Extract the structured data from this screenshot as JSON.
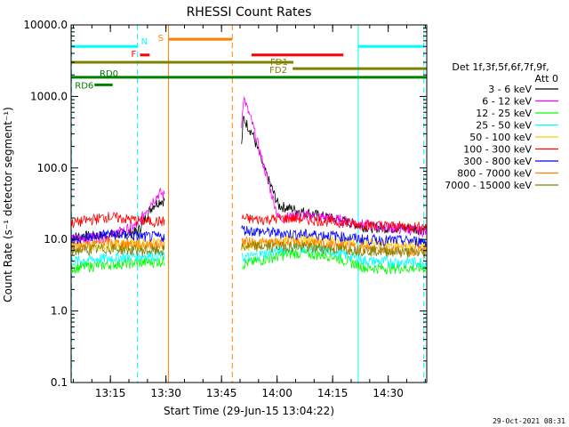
{
  "chart_data": {
    "type": "line",
    "title": "RHESSI Count Rates",
    "xlabel": "Start Time (29-Jun-15 13:04:22)",
    "ylabel": "Count Rate (s⁻¹ detector segment⁻¹)",
    "yscale": "log",
    "ylim": [
      0.1,
      10000
    ],
    "xlim_minutes": [
      0,
      96
    ],
    "y_ticks": [
      "0.1",
      "1.0",
      "10.0",
      "100.0",
      "1000.0",
      "10000.0"
    ],
    "x_ticks": [
      {
        "label": "13:15",
        "t": 10.6
      },
      {
        "label": "13:30",
        "t": 25.6
      },
      {
        "label": "13:45",
        "t": 40.6
      },
      {
        "label": "14:00",
        "t": 55.6
      },
      {
        "label": "14:15",
        "t": 70.6
      },
      {
        "label": "14:30",
        "t": 85.6
      }
    ],
    "legend": {
      "header1": "Det 1f,3f,5f,6f,7f,9f,",
      "header2": "Att 0",
      "placement": "right"
    },
    "series": [
      {
        "name": "3 - 6 keV",
        "color": "#000000",
        "points": [
          [
            0,
            11
          ],
          [
            10,
            11.5
          ],
          [
            18,
            13
          ],
          [
            20,
            20
          ],
          [
            22,
            30
          ],
          [
            24,
            35
          ],
          [
            25,
            35
          ],
          [
            46,
            200
          ],
          [
            46.5,
            500
          ],
          [
            49,
            300
          ],
          [
            52,
            100
          ],
          [
            56,
            30
          ],
          [
            62,
            25
          ],
          [
            70,
            20
          ],
          [
            80,
            15
          ],
          [
            96,
            14
          ]
        ]
      },
      {
        "name": "6 - 12 keV",
        "color": "#ff00ff",
        "points": [
          [
            0,
            10
          ],
          [
            10,
            11
          ],
          [
            18,
            16
          ],
          [
            20,
            25
          ],
          [
            22,
            35
          ],
          [
            24,
            45
          ],
          [
            25,
            42
          ],
          [
            46,
            400
          ],
          [
            46.5,
            1000
          ],
          [
            49,
            400
          ],
          [
            53,
            70
          ],
          [
            56,
            20
          ],
          [
            62,
            22
          ],
          [
            70,
            20
          ],
          [
            80,
            16
          ],
          [
            96,
            13
          ]
        ]
      },
      {
        "name": "12 - 25 keV",
        "color": "#00ff00",
        "points": [
          [
            0,
            4
          ],
          [
            10,
            4.5
          ],
          [
            20,
            4.8
          ],
          [
            25,
            5
          ],
          [
            46,
            4.5
          ],
          [
            50,
            5
          ],
          [
            60,
            6.5
          ],
          [
            70,
            6
          ],
          [
            80,
            4
          ],
          [
            96,
            4
          ]
        ]
      },
      {
        "name": "25 - 50 keV",
        "color": "#00ffff",
        "points": [
          [
            0,
            5
          ],
          [
            10,
            5.5
          ],
          [
            20,
            6
          ],
          [
            25,
            6
          ],
          [
            46,
            5.5
          ],
          [
            50,
            6
          ],
          [
            60,
            8
          ],
          [
            70,
            7
          ],
          [
            80,
            5
          ],
          [
            96,
            4.8
          ]
        ]
      },
      {
        "name": "50 - 100 keV",
        "color": "#ffcc00",
        "points": [
          [
            0,
            8
          ],
          [
            10,
            8.5
          ],
          [
            20,
            9
          ],
          [
            25,
            9
          ],
          [
            46,
            8
          ],
          [
            60,
            10
          ],
          [
            70,
            9.5
          ],
          [
            96,
            8
          ]
        ]
      },
      {
        "name": "100 - 300 keV",
        "color": "#ff0000",
        "points": [
          [
            0,
            17
          ],
          [
            10,
            21
          ],
          [
            20,
            18
          ],
          [
            25,
            18
          ],
          [
            46,
            20
          ],
          [
            50,
            19
          ],
          [
            60,
            20
          ],
          [
            70,
            18
          ],
          [
            80,
            16
          ],
          [
            96,
            15
          ]
        ]
      },
      {
        "name": "300 - 800 keV",
        "color": "#0000ff",
        "points": [
          [
            0,
            10
          ],
          [
            10,
            12
          ],
          [
            20,
            11
          ],
          [
            25,
            11
          ],
          [
            46,
            14
          ],
          [
            50,
            13
          ],
          [
            60,
            12
          ],
          [
            70,
            11.5
          ],
          [
            80,
            10
          ],
          [
            96,
            9.5
          ]
        ]
      },
      {
        "name": "800 - 7000 keV",
        "color": "#ff8000",
        "points": [
          [
            0,
            8
          ],
          [
            10,
            9
          ],
          [
            20,
            8.5
          ],
          [
            25,
            8.5
          ],
          [
            46,
            9.5
          ],
          [
            50,
            9
          ],
          [
            60,
            9
          ],
          [
            70,
            8.5
          ],
          [
            80,
            7.5
          ],
          [
            96,
            7
          ]
        ]
      },
      {
        "name": "7000 - 15000 keV",
        "color": "#808000",
        "points": [
          [
            0,
            7
          ],
          [
            10,
            7.5
          ],
          [
            20,
            7
          ],
          [
            25,
            7
          ],
          [
            46,
            8
          ],
          [
            60,
            8
          ],
          [
            70,
            7.5
          ],
          [
            96,
            6.5
          ]
        ]
      }
    ],
    "vertical_lines": [
      {
        "t": 0.1,
        "color": "#00ffff",
        "style": "dashed"
      },
      {
        "t": 17.9,
        "color": "#00ffff",
        "style": "dashed"
      },
      {
        "t": 26.3,
        "color": "#ff8000",
        "style": "solid"
      },
      {
        "t": 43.5,
        "color": "#ff8000",
        "style": "dashed"
      },
      {
        "t": 77.5,
        "color": "#00ffff",
        "style": "solid"
      },
      {
        "t": 95.2,
        "color": "#00ffff",
        "style": "dashed"
      }
    ],
    "flag_bars": [
      {
        "label": "N",
        "color": "#00ffff",
        "t0": 0,
        "t1": 17.9,
        "t2": 77.5,
        "t3": 95.2,
        "y": 5000
      },
      {
        "label": "S",
        "color": "#ff8000",
        "t0": 26.3,
        "t1": 43.5,
        "y": 6300
      },
      {
        "label": "F",
        "color": "#ff0000",
        "t0": 18.6,
        "t1": 21.2,
        "t2": 48.7,
        "t3": 73.5,
        "y": 3800
      },
      {
        "label": "FD1",
        "color": "#808000",
        "t0": 0,
        "t1": 60.0,
        "y": 3000
      },
      {
        "label": "FD2",
        "color": "#808000",
        "t0": 59.8,
        "t1": 96,
        "y": 2450
      },
      {
        "label": "RD0",
        "color": "#008000",
        "t0": 0,
        "t1": 96,
        "y": 1850
      },
      {
        "label": "RD6",
        "color": "#008000",
        "t0": 6.3,
        "t1": 11.2,
        "y": 1450
      }
    ]
  },
  "footer": {
    "timestamp": "29-Oct-2021 08:31"
  },
  "colors": {
    "axis": "#000000",
    "background": "#ffffff"
  }
}
